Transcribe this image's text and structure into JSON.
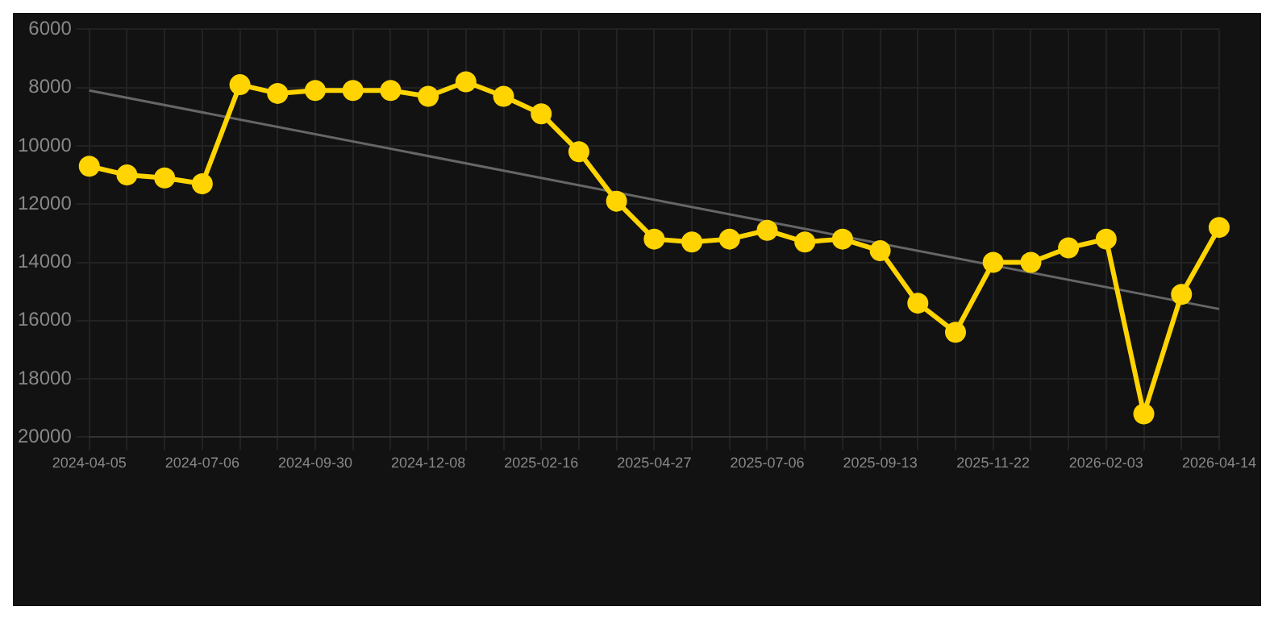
{
  "chart_data": {
    "type": "line",
    "categories": [
      "2024-04-05",
      null,
      null,
      "2024-07-06",
      null,
      null,
      "2024-09-30",
      null,
      null,
      "2024-12-08",
      null,
      null,
      "2025-02-16",
      null,
      null,
      "2025-04-27",
      null,
      null,
      "2025-07-06",
      null,
      null,
      "2025-09-13",
      null,
      null,
      "2025-11-22",
      null,
      null,
      "2026-02-03",
      null,
      null,
      "2026-04-14"
    ],
    "series": [
      {
        "color": "#ffd400",
        "marker": "circle",
        "values": [
          10700,
          11000,
          11100,
          11300,
          7900,
          8200,
          8100,
          8100,
          8100,
          8300,
          7800,
          8300,
          8900,
          10200,
          11900,
          13200,
          13300,
          13200,
          12900,
          13300,
          13200,
          13600,
          15400,
          16400,
          14000,
          14000,
          13500,
          13200,
          19200,
          15100,
          12800
        ]
      },
      {
        "type": "line",
        "color": "#666666",
        "marker": "none",
        "values": [
          8100,
          null,
          null,
          null,
          null,
          null,
          null,
          null,
          null,
          null,
          null,
          null,
          null,
          null,
          null,
          null,
          null,
          null,
          null,
          null,
          null,
          null,
          null,
          null,
          null,
          null,
          null,
          null,
          null,
          null,
          15600
        ]
      }
    ],
    "ylim": [
      20000,
      6000
    ],
    "yticks": [
      6000,
      8000,
      10000,
      12000,
      14000,
      16000,
      18000,
      20000
    ],
    "grid": true,
    "legend": false
  }
}
